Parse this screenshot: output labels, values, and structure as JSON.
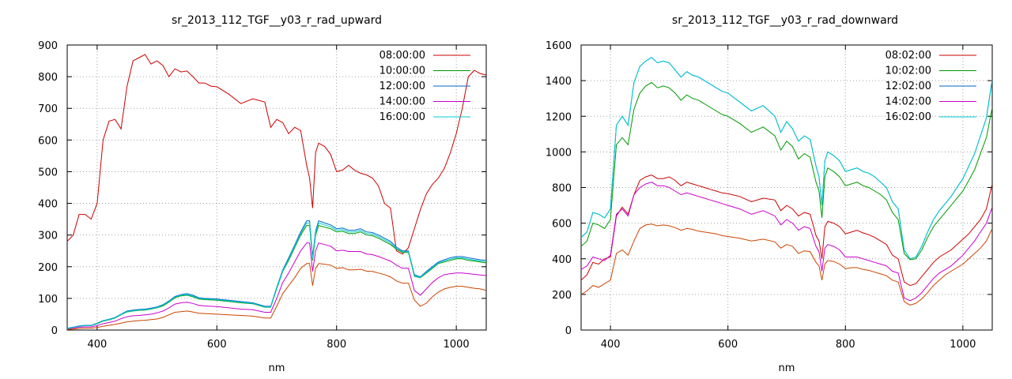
{
  "chart_data": [
    {
      "type": "line",
      "title": "sr_2013_112_TGF__y03_r_rad_upward",
      "xlabel": "nm",
      "ylabel": "",
      "xlim": [
        350,
        1050
      ],
      "ylim": [
        0,
        900
      ],
      "xticks": [
        400,
        600,
        800,
        1000
      ],
      "yticks": [
        0,
        100,
        200,
        300,
        400,
        500,
        600,
        700,
        800,
        900
      ],
      "xtick_labels": [
        "400",
        "600",
        "800",
        "1000"
      ],
      "ytick_labels": [
        "0",
        "100",
        "200",
        "300",
        "400",
        "500",
        "600",
        "700",
        "800",
        "900"
      ],
      "grid": true,
      "legend_position": "top-right",
      "x": [
        350,
        360,
        370,
        380,
        390,
        400,
        410,
        420,
        430,
        440,
        450,
        460,
        470,
        480,
        490,
        500,
        510,
        520,
        530,
        540,
        550,
        560,
        570,
        580,
        590,
        600,
        620,
        640,
        660,
        680,
        690,
        700,
        710,
        720,
        730,
        740,
        750,
        755,
        760,
        765,
        770,
        780,
        790,
        800,
        810,
        820,
        830,
        840,
        850,
        860,
        870,
        880,
        890,
        900,
        910,
        920,
        930,
        940,
        950,
        960,
        970,
        980,
        990,
        1000,
        1010,
        1020,
        1030,
        1040,
        1050
      ],
      "series": [
        {
          "name": "08:00:00",
          "color": "#cc0000",
          "values": [
            280,
            300,
            365,
            365,
            350,
            400,
            600,
            660,
            665,
            635,
            770,
            850,
            860,
            870,
            840,
            850,
            835,
            800,
            825,
            815,
            818,
            800,
            780,
            780,
            770,
            768,
            745,
            715,
            730,
            720,
            640,
            665,
            655,
            620,
            640,
            630,
            520,
            480,
            385,
            560,
            590,
            580,
            555,
            500,
            505,
            520,
            505,
            495,
            490,
            480,
            455,
            400,
            385,
            250,
            240,
            260,
            320,
            380,
            430,
            460,
            480,
            510,
            560,
            620,
            700,
            800,
            820,
            810,
            805
          ],
          "values_trim": true
        },
        {
          "name": "10:00:00",
          "color": "#009900",
          "values": [
            5,
            8,
            12,
            14,
            14,
            20,
            28,
            32,
            38,
            48,
            57,
            60,
            62,
            63,
            66,
            70,
            76,
            88,
            102,
            108,
            110,
            105,
            98,
            96,
            95,
            94,
            90,
            86,
            83,
            72,
            72,
            130,
            185,
            220,
            260,
            300,
            330,
            330,
            220,
            300,
            330,
            325,
            320,
            310,
            312,
            305,
            305,
            310,
            300,
            298,
            290,
            280,
            270,
            255,
            245,
            245,
            170,
            165,
            180,
            195,
            210,
            215,
            220,
            225,
            225,
            220,
            218,
            215,
            212
          ]
        },
        {
          "name": "12:00:00",
          "color": "#0066cc",
          "values": [
            6,
            9,
            13,
            15,
            15,
            22,
            30,
            34,
            40,
            50,
            60,
            63,
            65,
            66,
            69,
            73,
            80,
            92,
            106,
            112,
            115,
            110,
            102,
            100,
            99,
            98,
            94,
            90,
            86,
            75,
            75,
            135,
            190,
            228,
            268,
            310,
            345,
            345,
            232,
            312,
            345,
            338,
            332,
            320,
            322,
            315,
            315,
            320,
            310,
            308,
            300,
            290,
            280,
            262,
            250,
            250,
            175,
            168,
            185,
            200,
            215,
            222,
            228,
            232,
            232,
            228,
            225,
            222,
            220
          ]
        },
        {
          "name": "14:00:00",
          "color": "#cc00cc",
          "values": [
            4,
            6,
            9,
            10,
            10,
            14,
            20,
            24,
            28,
            36,
            42,
            45,
            46,
            48,
            50,
            54,
            60,
            70,
            82,
            86,
            88,
            84,
            78,
            76,
            75,
            74,
            70,
            66,
            64,
            56,
            56,
            100,
            150,
            180,
            215,
            250,
            275,
            275,
            185,
            250,
            275,
            270,
            265,
            250,
            252,
            248,
            248,
            248,
            240,
            238,
            232,
            225,
            218,
            205,
            195,
            195,
            125,
            110,
            130,
            150,
            165,
            175,
            178,
            180,
            180,
            178,
            176,
            174,
            172
          ]
        },
        {
          "name": "16:00:00",
          "color": "#00cccc",
          "values": [
            5,
            8,
            12,
            14,
            14,
            21,
            29,
            33,
            39,
            49,
            58,
            61,
            63,
            64,
            67,
            71,
            78,
            90,
            104,
            110,
            112,
            107,
            100,
            98,
            97,
            96,
            92,
            88,
            84,
            73,
            73,
            132,
            187,
            224,
            264,
            305,
            338,
            338,
            226,
            306,
            338,
            332,
            326,
            315,
            317,
            310,
            310,
            315,
            305,
            303,
            295,
            285,
            275,
            258,
            247,
            247,
            172,
            166,
            182,
            197,
            212,
            218,
            224,
            228,
            228,
            224,
            221,
            218,
            216
          ]
        },
        {
          "name": "",
          "color": "#cc4400",
          "values": [
            2,
            3,
            5,
            6,
            6,
            8,
            12,
            15,
            18,
            22,
            26,
            28,
            30,
            31,
            33,
            35,
            40,
            48,
            56,
            58,
            60,
            57,
            53,
            52,
            51,
            50,
            48,
            46,
            44,
            38,
            38,
            75,
            115,
            140,
            165,
            195,
            210,
            210,
            140,
            195,
            210,
            208,
            205,
            195,
            197,
            190,
            190,
            192,
            186,
            185,
            180,
            175,
            168,
            155,
            148,
            148,
            95,
            75,
            85,
            105,
            120,
            130,
            135,
            138,
            138,
            135,
            132,
            130,
            125
          ]
        }
      ]
    },
    {
      "type": "line",
      "title": "sr_2013_112_TGF__y03_r_rad_downward",
      "xlabel": "nm",
      "ylabel": "",
      "xlim": [
        350,
        1050
      ],
      "ylim": [
        0,
        1600
      ],
      "xticks": [
        400,
        600,
        800,
        1000
      ],
      "yticks": [
        0,
        200,
        400,
        600,
        800,
        1000,
        1200,
        1400,
        1600
      ],
      "xtick_labels": [
        "400",
        "600",
        "800",
        "1000"
      ],
      "ytick_labels": [
        "0",
        "200",
        "400",
        "600",
        "800",
        "1000",
        "1200",
        "1400",
        "1600"
      ],
      "grid": true,
      "legend_position": "top-right",
      "x": [
        350,
        360,
        370,
        380,
        390,
        400,
        410,
        420,
        430,
        440,
        450,
        460,
        470,
        480,
        490,
        500,
        510,
        520,
        530,
        540,
        550,
        560,
        570,
        580,
        590,
        600,
        620,
        640,
        660,
        680,
        690,
        700,
        710,
        720,
        730,
        740,
        750,
        755,
        760,
        765,
        770,
        780,
        790,
        800,
        810,
        820,
        830,
        840,
        850,
        860,
        870,
        880,
        890,
        900,
        910,
        920,
        930,
        940,
        950,
        960,
        970,
        980,
        990,
        1000,
        1010,
        1020,
        1030,
        1040,
        1050
      ],
      "series": [
        {
          "name": "08:02:00",
          "color": "#cc0000",
          "values": [
            280,
            310,
            380,
            370,
            400,
            410,
            640,
            690,
            650,
            760,
            840,
            860,
            870,
            850,
            850,
            860,
            840,
            810,
            830,
            820,
            810,
            800,
            790,
            780,
            770,
            765,
            750,
            720,
            740,
            730,
            670,
            700,
            680,
            640,
            660,
            650,
            530,
            500,
            400,
            580,
            610,
            600,
            580,
            540,
            550,
            560,
            545,
            535,
            520,
            500,
            480,
            420,
            400,
            270,
            250,
            260,
            300,
            340,
            380,
            410,
            430,
            450,
            480,
            510,
            540,
            580,
            620,
            680,
            820
          ]
        },
        {
          "name": "10:02:00",
          "color": "#009900",
          "values": [
            470,
            500,
            600,
            590,
            570,
            620,
            1040,
            1080,
            1040,
            1240,
            1330,
            1370,
            1390,
            1360,
            1370,
            1360,
            1330,
            1290,
            1320,
            1300,
            1290,
            1270,
            1250,
            1230,
            1210,
            1200,
            1160,
            1110,
            1140,
            1090,
            1010,
            1060,
            1030,
            960,
            990,
            970,
            830,
            780,
            630,
            860,
            910,
            890,
            860,
            810,
            820,
            830,
            810,
            800,
            780,
            760,
            730,
            660,
            620,
            430,
            395,
            400,
            450,
            520,
            580,
            620,
            660,
            700,
            740,
            780,
            840,
            900,
            990,
            1080,
            1250
          ]
        },
        {
          "name": "12:02:00",
          "color": "#0066cc",
          "values": [
            520,
            550,
            660,
            650,
            630,
            680,
            1150,
            1200,
            1150,
            1390,
            1480,
            1510,
            1530,
            1500,
            1510,
            1500,
            1460,
            1420,
            1450,
            1430,
            1420,
            1400,
            1380,
            1360,
            1340,
            1330,
            1280,
            1230,
            1260,
            1200,
            1110,
            1170,
            1130,
            1060,
            1090,
            1070,
            920,
            860,
            700,
            950,
            1000,
            980,
            950,
            890,
            900,
            910,
            890,
            880,
            860,
            830,
            800,
            720,
            680,
            450,
            400,
            410,
            470,
            550,
            620,
            670,
            710,
            750,
            800,
            850,
            920,
            990,
            1090,
            1190,
            1410
          ]
        },
        {
          "name": "14:02:00",
          "color": "#cc00cc",
          "values": [
            340,
            360,
            410,
            400,
            390,
            420,
            650,
            680,
            640,
            760,
            800,
            820,
            830,
            810,
            810,
            800,
            780,
            760,
            770,
            760,
            750,
            740,
            730,
            720,
            710,
            700,
            680,
            650,
            670,
            640,
            590,
            620,
            600,
            560,
            580,
            570,
            470,
            440,
            330,
            460,
            480,
            470,
            450,
            410,
            410,
            410,
            400,
            390,
            380,
            370,
            360,
            330,
            320,
            180,
            165,
            180,
            210,
            250,
            290,
            320,
            340,
            360,
            390,
            420,
            460,
            500,
            550,
            600,
            690
          ]
        },
        {
          "name": "16:02:00",
          "color": "#00cccc",
          "values": [
            520,
            550,
            660,
            650,
            630,
            680,
            1150,
            1200,
            1150,
            1390,
            1480,
            1510,
            1530,
            1500,
            1510,
            1500,
            1460,
            1420,
            1450,
            1430,
            1420,
            1400,
            1380,
            1360,
            1340,
            1330,
            1280,
            1230,
            1260,
            1200,
            1110,
            1170,
            1130,
            1060,
            1090,
            1070,
            920,
            860,
            700,
            950,
            1000,
            980,
            950,
            890,
            900,
            910,
            890,
            880,
            860,
            830,
            800,
            720,
            680,
            450,
            400,
            410,
            470,
            550,
            620,
            670,
            710,
            750,
            800,
            850,
            920,
            990,
            1090,
            1190,
            1400
          ]
        },
        {
          "name": "",
          "color": "#cc4400",
          "values": [
            200,
            220,
            250,
            240,
            260,
            280,
            430,
            450,
            420,
            500,
            570,
            590,
            595,
            585,
            590,
            585,
            575,
            560,
            570,
            565,
            555,
            550,
            545,
            540,
            530,
            525,
            515,
            500,
            510,
            495,
            460,
            480,
            470,
            430,
            445,
            440,
            380,
            360,
            280,
            370,
            390,
            385,
            370,
            345,
            350,
            350,
            340,
            335,
            325,
            315,
            305,
            280,
            270,
            160,
            140,
            150,
            175,
            210,
            250,
            280,
            310,
            330,
            350,
            370,
            400,
            430,
            460,
            500,
            570
          ]
        }
      ]
    }
  ]
}
